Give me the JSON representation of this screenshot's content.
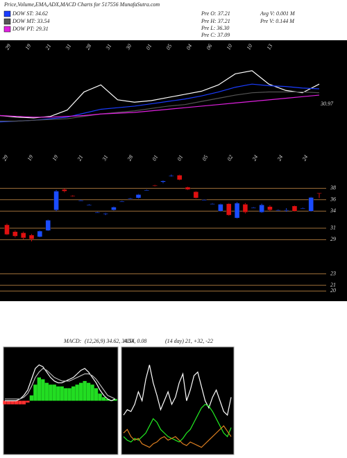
{
  "header": {
    "title": "Price,Volume,EMA,ADX,MACD Charts for 517556  MunafaSutra.com",
    "stats": [
      "Pre  O: 37.21",
      "Pre  H: 37.21",
      "Pre  L: 36.30",
      "Pre  C: 37.09",
      "Avg V: 0.001 M",
      "Pre  V: 0.144 M"
    ]
  },
  "chart_data": [
    {
      "type": "line",
      "ylim": [
        25,
        40
      ],
      "annotation": "30.97",
      "date_labels": [
        "29",
        "19",
        "21",
        "31",
        "28",
        "31",
        "30",
        "01",
        "05",
        "04",
        "06",
        "10",
        "10",
        "13"
      ],
      "series": [
        {
          "color": "#ffffff",
          "values": [
            30.6,
            30.4,
            30.3,
            30.5,
            31.3,
            33.6,
            34.5,
            32.6,
            32.3,
            32.5,
            32.9,
            33.3,
            33.7,
            34.5,
            35.9,
            36.3,
            34.6,
            33.8,
            33.5,
            34.6
          ]
        },
        {
          "name": "DOW ST: 34.62",
          "color": "#1a3cff",
          "values": [
            29.8,
            29.9,
            30.0,
            30.2,
            30.4,
            30.9,
            31.4,
            31.6,
            31.8,
            32.1,
            32.4,
            32.7,
            33.1,
            33.6,
            34.2,
            34.6,
            34.4,
            34.3,
            34.1,
            34.0
          ]
        },
        {
          "name": "DOW MT: 33.54",
          "color": "#555555",
          "values": [
            29.9,
            29.9,
            30.0,
            30.1,
            30.2,
            30.5,
            30.8,
            31.0,
            31.2,
            31.5,
            31.8,
            32.0,
            32.4,
            32.8,
            33.2,
            33.5,
            33.6,
            33.6,
            33.6,
            33.5
          ]
        },
        {
          "name": "DOW PT: 29.31",
          "color": "#e020e0",
          "values": [
            30.6,
            30.5,
            30.4,
            30.4,
            30.5,
            30.6,
            30.8,
            30.9,
            31.0,
            31.2,
            31.4,
            31.6,
            31.8,
            32.0,
            32.2,
            32.4,
            32.6,
            32.8,
            33.0,
            33.2
          ]
        }
      ]
    },
    {
      "type": "candlestick",
      "ylim": [
        18.7,
        40.6
      ],
      "yticks": [
        38,
        36,
        34,
        31,
        29,
        23,
        21,
        20
      ],
      "up_color": "#1a4cff",
      "down_color": "#e01010",
      "level_color": "#a0703a",
      "date_labels": [
        "29",
        "19",
        "19",
        "21",
        "31",
        "28",
        "01",
        "01",
        "05",
        "02",
        "24",
        "24",
        "24"
      ],
      "open": [
        31.6,
        30.4,
        30.2,
        29.8,
        29.5,
        30.6,
        34.2,
        37.8,
        36.7,
        35.9,
        35.1,
        33.8,
        33.5,
        34.2,
        35.7,
        36.2,
        36.3,
        37.7,
        38.5,
        39.1,
        40.2,
        40.3,
        38.2,
        37.4,
        36.0,
        35.3,
        34.0,
        35.3,
        32.8,
        35.2,
        34.6,
        33.8,
        34.8,
        34.2,
        34.2,
        34.9,
        34.5,
        34.0,
        37.21
      ],
      "high": [
        31.8,
        30.6,
        30.4,
        30.0,
        30.6,
        32.5,
        37.7,
        38.0,
        36.8,
        36.0,
        35.2,
        33.9,
        33.7,
        34.8,
        35.8,
        36.3,
        37.0,
        37.8,
        38.6,
        39.4,
        40.4,
        40.4,
        38.3,
        37.5,
        36.1,
        35.4,
        35.3,
        35.4,
        35.6,
        35.4,
        34.7,
        35.3,
        35.0,
        34.3,
        34.5,
        35.0,
        34.6,
        36.5,
        37.21
      ],
      "low": [
        29.8,
        29.4,
        29.0,
        28.7,
        29.4,
        30.5,
        34.0,
        37.3,
        36.5,
        35.8,
        35.0,
        33.7,
        33.3,
        34.1,
        35.6,
        36.1,
        36.2,
        37.6,
        38.3,
        38.9,
        40.0,
        39.4,
        37.7,
        36.2,
        35.9,
        35.2,
        33.9,
        33.2,
        32.7,
        33.6,
        34.5,
        33.7,
        34.0,
        34.1,
        33.9,
        33.9,
        34.4,
        33.9,
        36.3
      ],
      "close": [
        29.9,
        29.6,
        29.3,
        29.1,
        30.5,
        32.4,
        37.5,
        37.5,
        36.6,
        35.9,
        35.1,
        33.8,
        33.6,
        34.7,
        35.7,
        36.2,
        36.9,
        37.7,
        38.4,
        39.3,
        40.2,
        39.5,
        37.8,
        36.3,
        36.0,
        35.3,
        35.2,
        33.3,
        35.4,
        33.8,
        34.6,
        35.1,
        34.2,
        34.2,
        34.2,
        34.0,
        34.5,
        36.4,
        37.09
      ]
    },
    {
      "type": "combo",
      "title": "MACD:",
      "subtitle": "(12,26,9) 34.62, 34.54, 0.08",
      "ylim": [
        -3,
        3
      ],
      "bar_values": [
        -0.2,
        -0.2,
        -0.2,
        -0.2,
        -0.2,
        -0.2,
        -0.1,
        0.3,
        0.9,
        1.3,
        1.2,
        1.0,
        0.9,
        0.9,
        0.8,
        0.8,
        0.7,
        0.7,
        0.8,
        0.9,
        1.0,
        1.1,
        1.0,
        0.9,
        0.7,
        0.4,
        0.2,
        0.1,
        0.0,
        0.1
      ],
      "up_color": "#22dd22",
      "down_color": "#ff3030",
      "series": [
        {
          "color": "#ffffff",
          "values": [
            0.0,
            0.0,
            0.0,
            0.0,
            0.1,
            0.3,
            0.6,
            1.2,
            1.8,
            2.0,
            1.9,
            1.6,
            1.3,
            1.1,
            1.0,
            1.0,
            1.1,
            1.2,
            1.3,
            1.5,
            1.7,
            1.8,
            1.6,
            1.3,
            1.0,
            0.6,
            0.3,
            0.1,
            0.0,
            0.1
          ]
        },
        {
          "color": "#bbbbbb",
          "values": [
            0.1,
            0.1,
            0.1,
            0.1,
            0.1,
            0.2,
            0.4,
            0.8,
            1.3,
            1.6,
            1.8,
            1.7,
            1.5,
            1.3,
            1.2,
            1.1,
            1.1,
            1.1,
            1.2,
            1.3,
            1.4,
            1.5,
            1.5,
            1.4,
            1.2,
            0.9,
            0.6,
            0.3,
            0.2,
            0.1
          ]
        }
      ]
    },
    {
      "type": "line",
      "title": "ADX",
      "subtitle": "(14 day) 21, +32, -22",
      "ylim": [
        0,
        60
      ],
      "series": [
        {
          "color": "#ffffff",
          "values": [
            22,
            25,
            24,
            28,
            35,
            30,
            42,
            50,
            40,
            33,
            25,
            30,
            35,
            28,
            32,
            40,
            45,
            30,
            36,
            44,
            46,
            38,
            30,
            26,
            32,
            36,
            30,
            24,
            22,
            32
          ]
        },
        {
          "color": "#22ee22",
          "values": [
            10,
            8,
            7,
            9,
            8,
            10,
            12,
            16,
            20,
            18,
            14,
            12,
            10,
            9,
            8,
            7,
            9,
            12,
            14,
            18,
            22,
            26,
            28,
            27,
            24,
            20,
            16,
            12,
            10,
            15
          ]
        },
        {
          "color": "#e08020",
          "values": [
            12,
            14,
            10,
            8,
            9,
            6,
            5,
            4,
            6,
            7,
            9,
            10,
            8,
            9,
            10,
            8,
            6,
            5,
            7,
            6,
            5,
            4,
            6,
            8,
            10,
            12,
            14,
            16,
            13,
            10
          ]
        }
      ]
    }
  ]
}
